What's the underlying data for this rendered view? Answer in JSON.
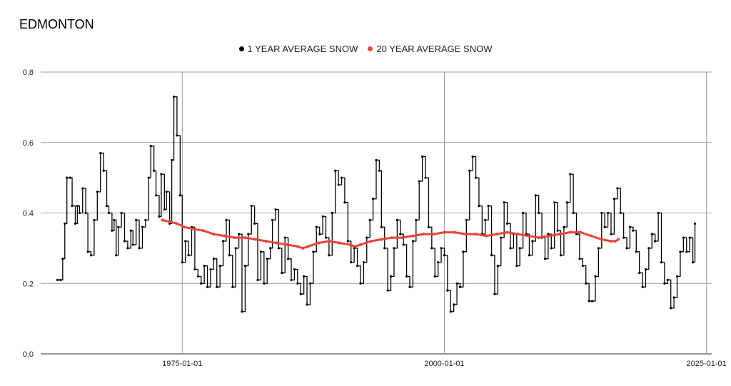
{
  "chart_data": {
    "type": "line",
    "title": "EDMONTON",
    "xlabel": "",
    "ylabel": "",
    "xlim": [
      1961.5,
      2025.5
    ],
    "ylim": [
      0,
      0.8
    ],
    "y_ticks": [
      "0.0",
      "0.2",
      "0.4",
      "0.6",
      "0.8"
    ],
    "x_ticks": [
      {
        "year": 1975,
        "label": "1975-01-01"
      },
      {
        "year": 2000,
        "label": "2000-01-01"
      },
      {
        "year": 2025,
        "label": "2025-01-01"
      }
    ],
    "legend_position": "top-center",
    "series": [
      {
        "name": "1 YEAR AVERAGE SNOW",
        "color": "#000000",
        "points": [
          [
            1963.1,
            0.21
          ],
          [
            1963.4,
            0.21
          ],
          [
            1963.6,
            0.27
          ],
          [
            1963.8,
            0.37
          ],
          [
            1964.0,
            0.5
          ],
          [
            1964.3,
            0.5
          ],
          [
            1964.5,
            0.42
          ],
          [
            1964.8,
            0.37
          ],
          [
            1965.0,
            0.42
          ],
          [
            1965.2,
            0.4
          ],
          [
            1965.5,
            0.47
          ],
          [
            1965.8,
            0.4
          ],
          [
            1966.0,
            0.29
          ],
          [
            1966.3,
            0.28
          ],
          [
            1966.6,
            0.38
          ],
          [
            1966.9,
            0.46
          ],
          [
            1967.2,
            0.57
          ],
          [
            1967.5,
            0.52
          ],
          [
            1967.8,
            0.42
          ],
          [
            1968.0,
            0.4
          ],
          [
            1968.3,
            0.35
          ],
          [
            1968.5,
            0.38
          ],
          [
            1968.7,
            0.28
          ],
          [
            1968.9,
            0.36
          ],
          [
            1969.2,
            0.4
          ],
          [
            1969.5,
            0.32
          ],
          [
            1969.8,
            0.3
          ],
          [
            1970.1,
            0.35
          ],
          [
            1970.3,
            0.31
          ],
          [
            1970.6,
            0.38
          ],
          [
            1970.9,
            0.3
          ],
          [
            1971.2,
            0.36
          ],
          [
            1971.5,
            0.38
          ],
          [
            1971.8,
            0.5
          ],
          [
            1972.0,
            0.59
          ],
          [
            1972.3,
            0.52
          ],
          [
            1972.5,
            0.45
          ],
          [
            1972.8,
            0.39
          ],
          [
            1973.0,
            0.51
          ],
          [
            1973.3,
            0.41
          ],
          [
            1973.5,
            0.46
          ],
          [
            1973.8,
            0.37
          ],
          [
            1974.0,
            0.55
          ],
          [
            1974.2,
            0.73
          ],
          [
            1974.5,
            0.62
          ],
          [
            1974.8,
            0.45
          ],
          [
            1975.0,
            0.26
          ],
          [
            1975.3,
            0.32
          ],
          [
            1975.6,
            0.28
          ],
          [
            1975.9,
            0.36
          ],
          [
            1976.2,
            0.24
          ],
          [
            1976.5,
            0.22
          ],
          [
            1976.8,
            0.2
          ],
          [
            1977.1,
            0.25
          ],
          [
            1977.4,
            0.19
          ],
          [
            1977.7,
            0.24
          ],
          [
            1978.0,
            0.27
          ],
          [
            1978.3,
            0.19
          ],
          [
            1978.6,
            0.25
          ],
          [
            1978.9,
            0.32
          ],
          [
            1979.2,
            0.38
          ],
          [
            1979.5,
            0.28
          ],
          [
            1979.8,
            0.19
          ],
          [
            1980.1,
            0.3
          ],
          [
            1980.4,
            0.34
          ],
          [
            1980.7,
            0.12
          ],
          [
            1981.0,
            0.25
          ],
          [
            1981.3,
            0.34
          ],
          [
            1981.6,
            0.42
          ],
          [
            1981.9,
            0.37
          ],
          [
            1982.2,
            0.21
          ],
          [
            1982.5,
            0.29
          ],
          [
            1982.8,
            0.2
          ],
          [
            1983.1,
            0.27
          ],
          [
            1983.4,
            0.3
          ],
          [
            1983.6,
            0.38
          ],
          [
            1983.9,
            0.41
          ],
          [
            1984.2,
            0.3
          ],
          [
            1984.5,
            0.23
          ],
          [
            1984.8,
            0.33
          ],
          [
            1985.1,
            0.27
          ],
          [
            1985.4,
            0.21
          ],
          [
            1985.7,
            0.24
          ],
          [
            1986.0,
            0.2
          ],
          [
            1986.3,
            0.17
          ],
          [
            1986.6,
            0.22
          ],
          [
            1986.9,
            0.14
          ],
          [
            1987.2,
            0.2
          ],
          [
            1987.5,
            0.29
          ],
          [
            1987.8,
            0.36
          ],
          [
            1988.1,
            0.34
          ],
          [
            1988.4,
            0.39
          ],
          [
            1988.7,
            0.33
          ],
          [
            1989.0,
            0.28
          ],
          [
            1989.3,
            0.4
          ],
          [
            1989.6,
            0.52
          ],
          [
            1989.9,
            0.48
          ],
          [
            1990.2,
            0.5
          ],
          [
            1990.5,
            0.43
          ],
          [
            1990.8,
            0.32
          ],
          [
            1991.1,
            0.26
          ],
          [
            1991.4,
            0.3
          ],
          [
            1991.7,
            0.25
          ],
          [
            1992.0,
            0.2
          ],
          [
            1992.3,
            0.26
          ],
          [
            1992.6,
            0.33
          ],
          [
            1992.9,
            0.38
          ],
          [
            1993.2,
            0.44
          ],
          [
            1993.5,
            0.55
          ],
          [
            1993.8,
            0.52
          ],
          [
            1994.0,
            0.36
          ],
          [
            1994.3,
            0.3
          ],
          [
            1994.6,
            0.18
          ],
          [
            1994.9,
            0.22
          ],
          [
            1995.2,
            0.3
          ],
          [
            1995.5,
            0.38
          ],
          [
            1995.8,
            0.34
          ],
          [
            1996.1,
            0.31
          ],
          [
            1996.4,
            0.22
          ],
          [
            1996.7,
            0.19
          ],
          [
            1997.0,
            0.32
          ],
          [
            1997.3,
            0.38
          ],
          [
            1997.6,
            0.49
          ],
          [
            1997.9,
            0.56
          ],
          [
            1998.2,
            0.5
          ],
          [
            1998.5,
            0.36
          ],
          [
            1998.8,
            0.3
          ],
          [
            1999.1,
            0.22
          ],
          [
            1999.4,
            0.26
          ],
          [
            1999.7,
            0.3
          ],
          [
            2000.0,
            0.28
          ],
          [
            2000.3,
            0.18
          ],
          [
            2000.6,
            0.12
          ],
          [
            2000.9,
            0.14
          ],
          [
            2001.2,
            0.2
          ],
          [
            2001.5,
            0.19
          ],
          [
            2001.8,
            0.29
          ],
          [
            2002.1,
            0.38
          ],
          [
            2002.4,
            0.52
          ],
          [
            2002.7,
            0.56
          ],
          [
            2003.0,
            0.5
          ],
          [
            2003.3,
            0.42
          ],
          [
            2003.6,
            0.34
          ],
          [
            2003.9,
            0.38
          ],
          [
            2004.2,
            0.42
          ],
          [
            2004.5,
            0.28
          ],
          [
            2004.8,
            0.17
          ],
          [
            2005.1,
            0.25
          ],
          [
            2005.4,
            0.33
          ],
          [
            2005.7,
            0.43
          ],
          [
            2006.0,
            0.37
          ],
          [
            2006.3,
            0.3
          ],
          [
            2006.6,
            0.34
          ],
          [
            2006.9,
            0.25
          ],
          [
            2007.2,
            0.3
          ],
          [
            2007.5,
            0.4
          ],
          [
            2007.8,
            0.34
          ],
          [
            2008.1,
            0.28
          ],
          [
            2008.4,
            0.32
          ],
          [
            2008.7,
            0.45
          ],
          [
            2009.0,
            0.4
          ],
          [
            2009.3,
            0.33
          ],
          [
            2009.6,
            0.27
          ],
          [
            2009.9,
            0.34
          ],
          [
            2010.2,
            0.3
          ],
          [
            2010.5,
            0.43
          ],
          [
            2010.8,
            0.35
          ],
          [
            2011.1,
            0.28
          ],
          [
            2011.4,
            0.36
          ],
          [
            2011.7,
            0.43
          ],
          [
            2012.0,
            0.51
          ],
          [
            2012.3,
            0.4
          ],
          [
            2012.6,
            0.34
          ],
          [
            2012.9,
            0.27
          ],
          [
            2013.2,
            0.25
          ],
          [
            2013.5,
            0.2
          ],
          [
            2013.8,
            0.15
          ],
          [
            2014.1,
            0.15
          ],
          [
            2014.4,
            0.22
          ],
          [
            2014.7,
            0.3
          ],
          [
            2015.0,
            0.4
          ],
          [
            2015.3,
            0.36
          ],
          [
            2015.6,
            0.4
          ],
          [
            2015.9,
            0.34
          ],
          [
            2016.2,
            0.44
          ],
          [
            2016.5,
            0.47
          ],
          [
            2016.8,
            0.4
          ],
          [
            2017.1,
            0.33
          ],
          [
            2017.4,
            0.3
          ],
          [
            2017.7,
            0.36
          ],
          [
            2018.0,
            0.35
          ],
          [
            2018.3,
            0.29
          ],
          [
            2018.6,
            0.23
          ],
          [
            2018.9,
            0.19
          ],
          [
            2019.2,
            0.24
          ],
          [
            2019.5,
            0.3
          ],
          [
            2019.8,
            0.34
          ],
          [
            2020.1,
            0.32
          ],
          [
            2020.4,
            0.4
          ],
          [
            2020.7,
            0.26
          ],
          [
            2021.0,
            0.2
          ],
          [
            2021.3,
            0.21
          ],
          [
            2021.6,
            0.13
          ],
          [
            2021.9,
            0.16
          ],
          [
            2022.2,
            0.22
          ],
          [
            2022.5,
            0.29
          ],
          [
            2022.8,
            0.33
          ],
          [
            2023.1,
            0.29
          ],
          [
            2023.4,
            0.33
          ],
          [
            2023.7,
            0.26
          ],
          [
            2023.9,
            0.37
          ]
        ]
      },
      {
        "name": "20 YEAR AVERAGE SNOW",
        "color": "#e8453c",
        "points": [
          [
            1973.1,
            0.38
          ],
          [
            1973.8,
            0.375
          ],
          [
            1974.5,
            0.37
          ],
          [
            1975.2,
            0.36
          ],
          [
            1976.0,
            0.355
          ],
          [
            1977.0,
            0.35
          ],
          [
            1978.0,
            0.34
          ],
          [
            1979.0,
            0.335
          ],
          [
            1980.0,
            0.33
          ],
          [
            1981.0,
            0.33
          ],
          [
            1982.0,
            0.325
          ],
          [
            1983.0,
            0.32
          ],
          [
            1984.0,
            0.315
          ],
          [
            1985.0,
            0.31
          ],
          [
            1986.0,
            0.305
          ],
          [
            1986.5,
            0.3
          ],
          [
            1987.0,
            0.305
          ],
          [
            1988.0,
            0.315
          ],
          [
            1989.0,
            0.32
          ],
          [
            1990.0,
            0.315
          ],
          [
            1991.0,
            0.31
          ],
          [
            1991.5,
            0.305
          ],
          [
            1992.0,
            0.31
          ],
          [
            1993.0,
            0.32
          ],
          [
            1994.0,
            0.325
          ],
          [
            1995.0,
            0.33
          ],
          [
            1996.0,
            0.33
          ],
          [
            1997.0,
            0.335
          ],
          [
            1998.0,
            0.34
          ],
          [
            1999.0,
            0.34
          ],
          [
            2000.0,
            0.345
          ],
          [
            2001.0,
            0.345
          ],
          [
            2002.0,
            0.34
          ],
          [
            2003.0,
            0.34
          ],
          [
            2004.0,
            0.335
          ],
          [
            2005.0,
            0.34
          ],
          [
            2006.0,
            0.345
          ],
          [
            2007.0,
            0.34
          ],
          [
            2008.0,
            0.335
          ],
          [
            2009.0,
            0.33
          ],
          [
            2010.0,
            0.335
          ],
          [
            2011.0,
            0.34
          ],
          [
            2012.0,
            0.345
          ],
          [
            2013.0,
            0.345
          ],
          [
            2014.0,
            0.335
          ],
          [
            2015.0,
            0.325
          ],
          [
            2015.9,
            0.32
          ],
          [
            2016.3,
            0.32
          ],
          [
            2016.6,
            0.325
          ]
        ]
      }
    ]
  }
}
